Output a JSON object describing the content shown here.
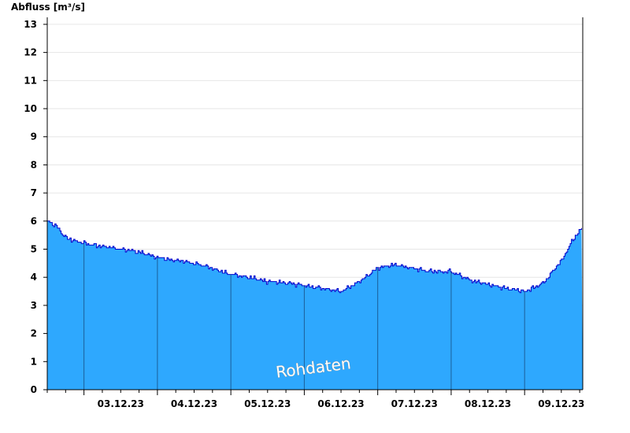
{
  "chart_data": {
    "type": "area",
    "ylabel": "Abfluss [m³/s]",
    "ylim": [
      0,
      13.25
    ],
    "yticks": [
      0,
      1,
      2,
      3,
      4,
      5,
      6,
      7,
      8,
      9,
      10,
      11,
      12,
      13
    ],
    "x_day_labels": [
      "03.12.23",
      "04.12.23",
      "05.12.23",
      "06.12.23",
      "07.12.23",
      "08.12.23",
      "09.12.23"
    ],
    "xlim": [
      "02.12.23 12:00",
      "09.12.23 19:00"
    ],
    "day_boundaries": [
      "03.12.23 00:00",
      "04.12.23 00:00",
      "05.12.23 00:00",
      "06.12.23 00:00",
      "07.12.23 00:00",
      "08.12.23 00:00",
      "09.12.23 00:00"
    ],
    "grid": "horizontal",
    "series": [
      {
        "x": [
          "02.12.23 12:00",
          "02.12.23 15:00",
          "02.12.23 18:00",
          "03.12.23 00:00",
          "03.12.23 06:00",
          "03.12.23 12:00",
          "03.12.23 18:00",
          "04.12.23 00:00",
          "04.12.23 06:00",
          "04.12.23 12:00",
          "04.12.23 18:00",
          "05.12.23 00:00",
          "05.12.23 06:00",
          "05.12.23 12:00",
          "05.12.23 18:00",
          "06.12.23 00:00",
          "06.12.23 06:00",
          "06.12.23 12:00",
          "06.12.23 18:00",
          "07.12.23 00:00",
          "07.12.23 06:00",
          "07.12.23 12:00",
          "07.12.23 18:00",
          "08.12.23 00:00",
          "08.12.23 06:00",
          "08.12.23 12:00",
          "08.12.23 18:00",
          "09.12.23 00:00",
          "09.12.23 06:00",
          "09.12.23 12:00",
          "09.12.23 16:00",
          "09.12.23 19:00"
        ],
        "values": [
          6.0,
          5.8,
          5.4,
          5.2,
          5.1,
          5.0,
          4.9,
          4.7,
          4.6,
          4.5,
          4.3,
          4.1,
          4.0,
          3.85,
          3.8,
          3.7,
          3.6,
          3.5,
          3.85,
          4.35,
          4.45,
          4.3,
          4.2,
          4.2,
          3.9,
          3.75,
          3.6,
          3.5,
          3.8,
          4.6,
          5.4,
          5.8
        ],
        "fill_color": "#2ea8fe",
        "line_color": "#0000cc"
      }
    ],
    "watermark": "Rohdaten"
  }
}
